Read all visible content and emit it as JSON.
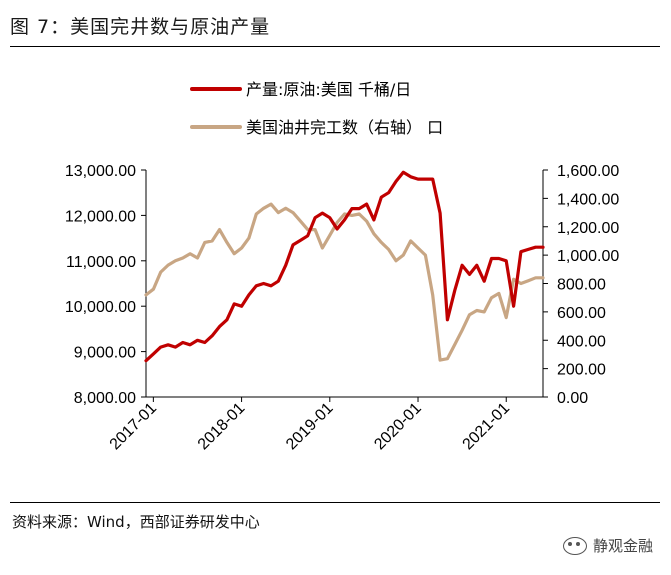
{
  "figure": {
    "title": "图 7：美国完井数与原油产量",
    "source": "资料来源：Wind，西部证券研发中心",
    "watermark": "静观金融"
  },
  "chart_data": {
    "type": "line",
    "legend_position": "top-center",
    "grid": false,
    "x_tick_labels": [
      "2017-01",
      "2018-01",
      "2019-01",
      "2020-01",
      "2021-01"
    ],
    "x_range": [
      "2016-12",
      "2021-06"
    ],
    "y_left": {
      "ticks": [
        "8,000.00",
        "9,000.00",
        "10,000.00",
        "11,000.00",
        "12,000.00",
        "13,000.00"
      ],
      "lim": [
        8000,
        13000
      ]
    },
    "y_right": {
      "ticks": [
        "0.00",
        "200.00",
        "400.00",
        "600.00",
        "800.00",
        "1,000.00",
        "1,200.00",
        "1,400.00",
        "1,600.00"
      ],
      "lim": [
        0,
        1600
      ]
    },
    "series": [
      {
        "name": "产量:原油:美国 千桶/日",
        "axis": "left",
        "color": "#c00000",
        "points": [
          [
            "2016-12",
            8800
          ],
          [
            "2017-01",
            8950
          ],
          [
            "2017-02",
            9100
          ],
          [
            "2017-03",
            9150
          ],
          [
            "2017-04",
            9100
          ],
          [
            "2017-05",
            9200
          ],
          [
            "2017-06",
            9150
          ],
          [
            "2017-07",
            9250
          ],
          [
            "2017-08",
            9200
          ],
          [
            "2017-09",
            9350
          ],
          [
            "2017-10",
            9550
          ],
          [
            "2017-11",
            9700
          ],
          [
            "2017-12",
            10050
          ],
          [
            "2018-01",
            10000
          ],
          [
            "2018-02",
            10250
          ],
          [
            "2018-03",
            10450
          ],
          [
            "2018-04",
            10500
          ],
          [
            "2018-05",
            10450
          ],
          [
            "2018-06",
            10550
          ],
          [
            "2018-07",
            10900
          ],
          [
            "2018-08",
            11350
          ],
          [
            "2018-09",
            11450
          ],
          [
            "2018-10",
            11550
          ],
          [
            "2018-11",
            11950
          ],
          [
            "2018-12",
            12050
          ],
          [
            "2019-01",
            11950
          ],
          [
            "2019-02",
            11700
          ],
          [
            "2019-03",
            11900
          ],
          [
            "2019-04",
            12150
          ],
          [
            "2019-05",
            12150
          ],
          [
            "2019-06",
            12250
          ],
          [
            "2019-07",
            11900
          ],
          [
            "2019-08",
            12400
          ],
          [
            "2019-09",
            12500
          ],
          [
            "2019-10",
            12750
          ],
          [
            "2019-11",
            12950
          ],
          [
            "2019-12",
            12850
          ],
          [
            "2020-01",
            12800
          ],
          [
            "2020-02",
            12800
          ],
          [
            "2020-03",
            12800
          ],
          [
            "2020-04",
            12050
          ],
          [
            "2020-05",
            9700
          ],
          [
            "2020-06",
            10350
          ],
          [
            "2020-07",
            10900
          ],
          [
            "2020-08",
            10700
          ],
          [
            "2020-09",
            10900
          ],
          [
            "2020-10",
            10550
          ],
          [
            "2020-11",
            11050
          ],
          [
            "2020-12",
            11050
          ],
          [
            "2021-01",
            11000
          ],
          [
            "2021-02",
            10000
          ],
          [
            "2021-03",
            11200
          ],
          [
            "2021-04",
            11250
          ],
          [
            "2021-05",
            11300
          ],
          [
            "2021-06",
            11300
          ]
        ]
      },
      {
        "name": "美国油井完工数（右轴） 口",
        "axis": "right",
        "color": "#c8a684",
        "points": [
          [
            "2016-12",
            720
          ],
          [
            "2017-01",
            760
          ],
          [
            "2017-02",
            880
          ],
          [
            "2017-03",
            930
          ],
          [
            "2017-04",
            960
          ],
          [
            "2017-05",
            980
          ],
          [
            "2017-06",
            1010
          ],
          [
            "2017-07",
            980
          ],
          [
            "2017-08",
            1090
          ],
          [
            "2017-09",
            1100
          ],
          [
            "2017-10",
            1180
          ],
          [
            "2017-11",
            1090
          ],
          [
            "2017-12",
            1010
          ],
          [
            "2018-01",
            1050
          ],
          [
            "2018-02",
            1120
          ],
          [
            "2018-03",
            1290
          ],
          [
            "2018-04",
            1330
          ],
          [
            "2018-05",
            1360
          ],
          [
            "2018-06",
            1300
          ],
          [
            "2018-07",
            1330
          ],
          [
            "2018-08",
            1300
          ],
          [
            "2018-09",
            1240
          ],
          [
            "2018-10",
            1180
          ],
          [
            "2018-11",
            1180
          ],
          [
            "2018-12",
            1050
          ],
          [
            "2019-01",
            1140
          ],
          [
            "2019-02",
            1230
          ],
          [
            "2019-03",
            1290
          ],
          [
            "2019-04",
            1280
          ],
          [
            "2019-05",
            1290
          ],
          [
            "2019-06",
            1240
          ],
          [
            "2019-07",
            1150
          ],
          [
            "2019-08",
            1090
          ],
          [
            "2019-09",
            1040
          ],
          [
            "2019-10",
            960
          ],
          [
            "2019-11",
            1000
          ],
          [
            "2019-12",
            1100
          ],
          [
            "2020-01",
            1050
          ],
          [
            "2020-02",
            1000
          ],
          [
            "2020-03",
            720
          ],
          [
            "2020-04",
            260
          ],
          [
            "2020-05",
            270
          ],
          [
            "2020-06",
            370
          ],
          [
            "2020-07",
            470
          ],
          [
            "2020-08",
            580
          ],
          [
            "2020-09",
            610
          ],
          [
            "2020-10",
            600
          ],
          [
            "2020-11",
            700
          ],
          [
            "2020-12",
            730
          ],
          [
            "2021-01",
            560
          ],
          [
            "2021-02",
            830
          ],
          [
            "2021-03",
            800
          ],
          [
            "2021-04",
            820
          ],
          [
            "2021-05",
            840
          ],
          [
            "2021-06",
            840
          ]
        ]
      }
    ]
  }
}
